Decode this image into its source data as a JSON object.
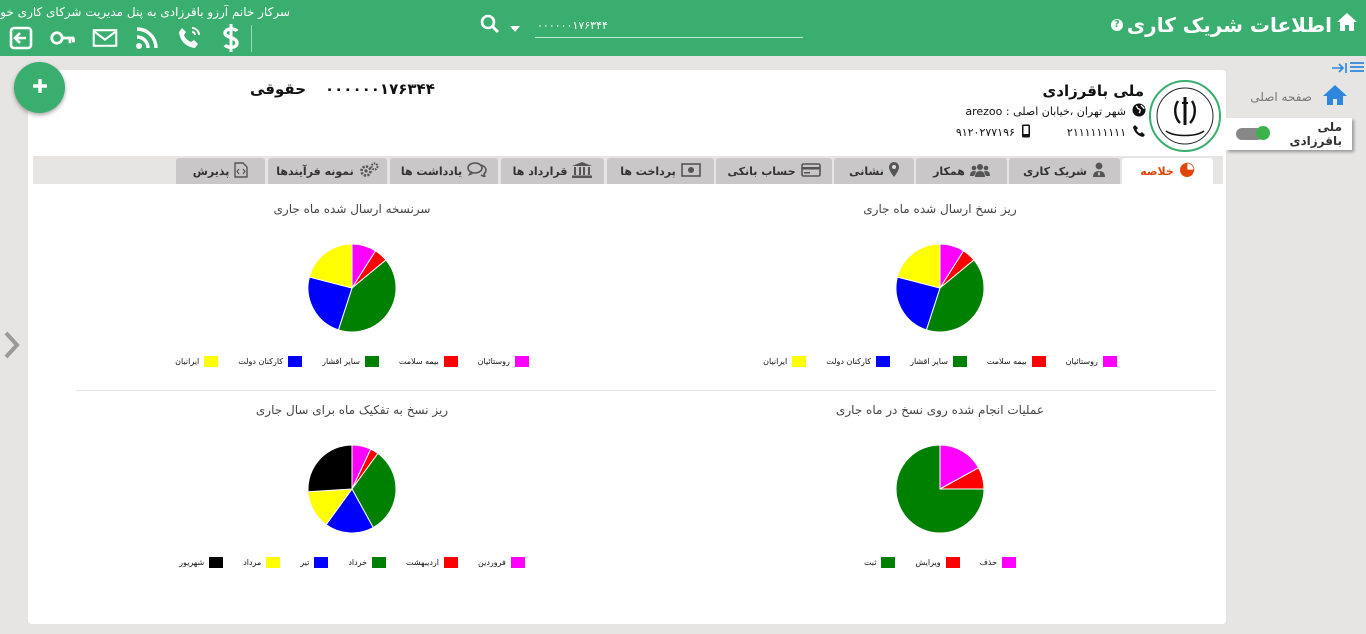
{
  "header": {
    "title": "اطلاعات شریک کاری",
    "welcome": "سرکار خانم آرزو باقرزادی به پنل مدیریت شرکای کاری خوش آمدید",
    "search_value": "۰۰۰۰۰۰۱۷۶۳۴۴",
    "icons": [
      "exit-icon",
      "key-icon",
      "mail-icon",
      "rss-icon",
      "phone-icon",
      "dollar-icon"
    ]
  },
  "sidebar": {
    "home_label": "صفحه اصلی",
    "user_label": "ملی باقرزادی"
  },
  "partner": {
    "name": "ملی باقرزادی",
    "address": "شهر تهران ،خیابان اصلی : arezoo",
    "phone": "۲۱۱۱۱۱۱۱۱۱",
    "mobile": "۹۱۲۰۲۷۷۱۹۶",
    "account_type": "حقوقی",
    "account_number": "۰۰۰۰۰۰۱۷۶۳۴۴"
  },
  "tabs": [
    {
      "label": "خلاصه",
      "icon": "pie-icon"
    },
    {
      "label": "شریک کاری",
      "icon": "user-tie-icon"
    },
    {
      "label": "همکار",
      "icon": "users-icon"
    },
    {
      "label": "نشانی",
      "icon": "map-marker-icon"
    },
    {
      "label": "حساب بانکی",
      "icon": "credit-card-icon"
    },
    {
      "label": "پرداخت ها",
      "icon": "money-icon"
    },
    {
      "label": "قرارداد ها",
      "icon": "bank-icon"
    },
    {
      "label": "یادداشت ها",
      "icon": "comments-icon"
    },
    {
      "label": "نمونه فرآیندها",
      "icon": "gears-icon"
    },
    {
      "label": "پذیرش",
      "icon": "code-file-icon"
    }
  ],
  "colors": {
    "header_green": "#3aae6f",
    "active_tab_text": "#e0450b"
  },
  "chart_data": [
    {
      "type": "pie",
      "title": "ریز نسخ ارسال شده ماه جاری",
      "categories": [
        "روستائیان",
        "بیمه سلامت",
        "سایر اقشار",
        "کارکنان دولت",
        "ایرانیان"
      ],
      "colors": [
        "#ff00ff",
        "#ff0000",
        "#008000",
        "#0000ff",
        "#ffff00"
      ],
      "values": [
        9,
        5,
        41,
        24,
        21
      ]
    },
    {
      "type": "pie",
      "title": "سرنسخه ارسال شده ماه جاری",
      "categories": [
        "روستائیان",
        "بیمه سلامت",
        "سایر اقشار",
        "کارکنان دولت",
        "ایرانیان"
      ],
      "colors": [
        "#ff00ff",
        "#ff0000",
        "#008000",
        "#0000ff",
        "#ffff00"
      ],
      "values": [
        9,
        5,
        41,
        24,
        21
      ]
    },
    {
      "type": "pie",
      "title": "عملیات انجام شده روی نسخ در ماه جاری",
      "categories": [
        "حذف",
        "ویرایش",
        "ثبت"
      ],
      "colors": [
        "#ff00ff",
        "#ff0000",
        "#008000"
      ],
      "values": [
        17,
        8,
        75
      ]
    },
    {
      "type": "pie",
      "title": "ریز نسخ به تفکیک ماه برای سال جاری",
      "categories": [
        "فروردین",
        "اردیبهشت",
        "خرداد",
        "تیر",
        "مرداد",
        "شهریور"
      ],
      "colors": [
        "#ff00ff",
        "#ff0000",
        "#008000",
        "#0000ff",
        "#ffff00",
        "#000000"
      ],
      "values": [
        7,
        3,
        32,
        18,
        14,
        26
      ]
    }
  ]
}
